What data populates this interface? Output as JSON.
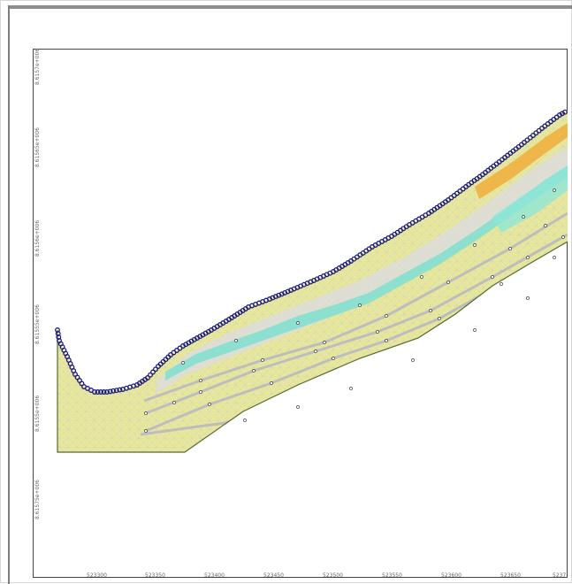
{
  "chart_data": {
    "type": "other",
    "description_kind": "finite-element mesh cross-section",
    "x_ticks": [
      "523300",
      "523350",
      "523400",
      "523450",
      "523500",
      "523550",
      "523600",
      "523650",
      "5237"
    ],
    "y_ticks": [
      "8.6155e+006",
      "8.61555e+006",
      "8.6156e+006",
      "8.61565e+006",
      "8.6157e+006",
      "8.61575e+006",
      "8.6158e+006"
    ],
    "colors": {
      "mesh_fill": "#e8e89a",
      "mesh_lines": "#c7c7c7",
      "material_cyan": "#7fe0d0",
      "material_orange": "#f0b040",
      "boundary_nodes": "#1a1a7a",
      "inner_lines": "#bdbdbd",
      "outline": "#556b2f"
    }
  },
  "window": {
    "icons": {
      "frame": "plot-frame"
    }
  }
}
